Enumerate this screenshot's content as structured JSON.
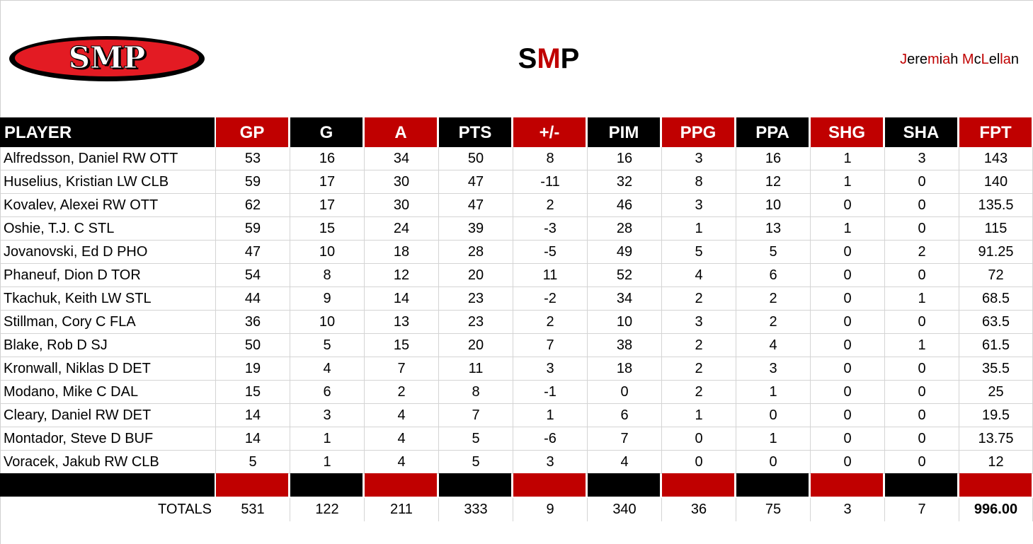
{
  "header": {
    "logo_text": "SMP",
    "title_parts": [
      {
        "text": "S",
        "color": "black"
      },
      {
        "text": "M",
        "color": "red"
      },
      {
        "text": "P",
        "color": "black"
      }
    ],
    "owner_parts": [
      {
        "text": "J",
        "color": "red"
      },
      {
        "text": "ere",
        "color": "black"
      },
      {
        "text": "m",
        "color": "red"
      },
      {
        "text": "i",
        "color": "black"
      },
      {
        "text": "a",
        "color": "red"
      },
      {
        "text": "h ",
        "color": "black"
      },
      {
        "text": "M",
        "color": "red"
      },
      {
        "text": "c",
        "color": "black"
      },
      {
        "text": "L",
        "color": "red"
      },
      {
        "text": "el",
        "color": "black"
      },
      {
        "text": "la",
        "color": "red"
      },
      {
        "text": "n",
        "color": "black"
      }
    ]
  },
  "colors": {
    "red": "#c00000",
    "black": "#000000",
    "grid": "#d4d4d4"
  },
  "table": {
    "columns": [
      {
        "label": "PLAYER",
        "bg": "black"
      },
      {
        "label": "GP",
        "bg": "red"
      },
      {
        "label": "G",
        "bg": "black"
      },
      {
        "label": "A",
        "bg": "red"
      },
      {
        "label": "PTS",
        "bg": "black"
      },
      {
        "label": "+/-",
        "bg": "red"
      },
      {
        "label": "PIM",
        "bg": "black"
      },
      {
        "label": "PPG",
        "bg": "red"
      },
      {
        "label": "PPA",
        "bg": "black"
      },
      {
        "label": "SHG",
        "bg": "red"
      },
      {
        "label": "SHA",
        "bg": "black"
      },
      {
        "label": "FPT",
        "bg": "red"
      }
    ],
    "rows": [
      [
        "Alfredsson, Daniel RW OTT",
        "53",
        "16",
        "34",
        "50",
        "8",
        "16",
        "3",
        "16",
        "1",
        "3",
        "143"
      ],
      [
        "Huselius, Kristian LW CLB",
        "59",
        "17",
        "30",
        "47",
        "-11",
        "32",
        "8",
        "12",
        "1",
        "0",
        "140"
      ],
      [
        "Kovalev, Alexei RW OTT",
        "62",
        "17",
        "30",
        "47",
        "2",
        "46",
        "3",
        "10",
        "0",
        "0",
        "135.5"
      ],
      [
        "Oshie, T.J. C STL",
        "59",
        "15",
        "24",
        "39",
        "-3",
        "28",
        "1",
        "13",
        "1",
        "0",
        "115"
      ],
      [
        "Jovanovski, Ed D PHO",
        "47",
        "10",
        "18",
        "28",
        "-5",
        "49",
        "5",
        "5",
        "0",
        "2",
        "91.25"
      ],
      [
        "Phaneuf, Dion D TOR",
        "54",
        "8",
        "12",
        "20",
        "11",
        "52",
        "4",
        "6",
        "0",
        "0",
        "72"
      ],
      [
        "Tkachuk, Keith LW STL",
        "44",
        "9",
        "14",
        "23",
        "-2",
        "34",
        "2",
        "2",
        "0",
        "1",
        "68.5"
      ],
      [
        "Stillman, Cory C FLA",
        "36",
        "10",
        "13",
        "23",
        "2",
        "10",
        "3",
        "2",
        "0",
        "0",
        "63.5"
      ],
      [
        "Blake, Rob D SJ",
        "50",
        "5",
        "15",
        "20",
        "7",
        "38",
        "2",
        "4",
        "0",
        "1",
        "61.5"
      ],
      [
        "Kronwall, Niklas D DET",
        "19",
        "4",
        "7",
        "11",
        "3",
        "18",
        "2",
        "3",
        "0",
        "0",
        "35.5"
      ],
      [
        "Modano, Mike C DAL",
        "15",
        "6",
        "2",
        "8",
        "-1",
        "0",
        "2",
        "1",
        "0",
        "0",
        "25"
      ],
      [
        "Cleary, Daniel RW DET",
        "14",
        "3",
        "4",
        "7",
        "1",
        "6",
        "1",
        "0",
        "0",
        "0",
        "19.5"
      ],
      [
        "Montador, Steve D BUF",
        "14",
        "1",
        "4",
        "5",
        "-6",
        "7",
        "0",
        "1",
        "0",
        "0",
        "13.75"
      ],
      [
        "Voracek, Jakub RW CLB",
        "5",
        "1",
        "4",
        "5",
        "3",
        "4",
        "0",
        "0",
        "0",
        "0",
        "12"
      ]
    ],
    "totals": [
      "TOTALS",
      "531",
      "122",
      "211",
      "333",
      "9",
      "340",
      "36",
      "75",
      "3",
      "7",
      "996.00"
    ]
  }
}
